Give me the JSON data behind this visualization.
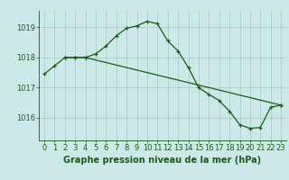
{
  "background_color": "#cce8e8",
  "plot_bg_color": "#cce8e8",
  "grid_color": "#aacccc",
  "line_color": "#1a5c1a",
  "xlabel": "Graphe pression niveau de la mer (hPa)",
  "xlim": [
    -0.5,
    23.5
  ],
  "ylim": [
    1015.25,
    1019.55
  ],
  "yticks": [
    1016,
    1017,
    1018,
    1019
  ],
  "xticks": [
    0,
    1,
    2,
    3,
    4,
    5,
    6,
    7,
    8,
    9,
    10,
    11,
    12,
    13,
    14,
    15,
    16,
    17,
    18,
    19,
    20,
    21,
    22,
    23
  ],
  "series1_x": [
    0,
    1,
    2,
    3,
    4,
    5,
    6,
    7,
    8,
    9,
    10,
    11,
    12,
    13,
    14,
    15,
    16,
    17,
    18,
    19,
    20,
    21,
    22,
    23
  ],
  "series1_y": [
    1017.45,
    1017.72,
    1018.0,
    1018.0,
    1018.0,
    1018.12,
    1018.38,
    1018.72,
    1018.97,
    1019.05,
    1019.2,
    1019.12,
    1018.55,
    1018.22,
    1017.67,
    1017.0,
    1016.78,
    1016.57,
    1016.22,
    1015.77,
    1015.65,
    1015.68,
    1016.35,
    1016.42
  ],
  "series2_x": [
    2,
    3,
    4,
    23
  ],
  "series2_y": [
    1018.0,
    1018.0,
    1018.0,
    1016.42
  ],
  "xlabel_fontsize": 7,
  "tick_fontsize": 6,
  "line_width": 0.9,
  "marker_size": 3.5,
  "marker_ew": 0.9
}
